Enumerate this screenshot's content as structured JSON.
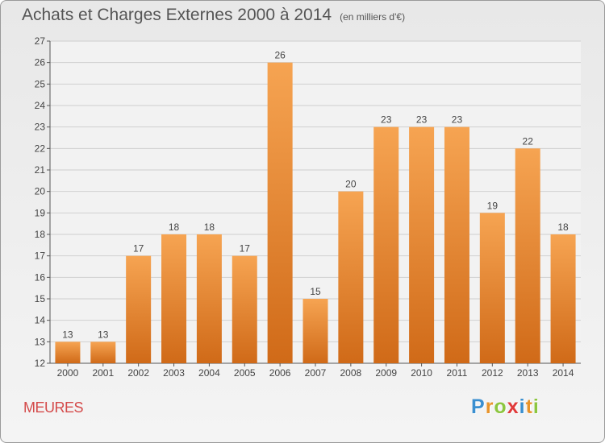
{
  "chart_data": {
    "type": "bar",
    "title": "Achats et Charges Externes 2000 à 2014",
    "unit": "(en milliers d'€)",
    "categories": [
      "2000",
      "2001",
      "2002",
      "2003",
      "2004",
      "2005",
      "2006",
      "2007",
      "2008",
      "2009",
      "2010",
      "2011",
      "2012",
      "2013",
      "2014"
    ],
    "values": [
      13,
      13,
      17,
      18,
      18,
      17,
      26,
      15,
      20,
      23,
      23,
      23,
      19,
      22,
      18
    ],
    "ylim": [
      12,
      27
    ],
    "yticks": [
      12,
      13,
      14,
      15,
      16,
      17,
      18,
      19,
      20,
      21,
      22,
      23,
      24,
      25,
      26,
      27
    ],
    "grid": true,
    "bar_color_top": "#f6a452",
    "bar_color_bottom": "#d06a18"
  },
  "footer": {
    "commune": "MEURES",
    "logo_letters": [
      {
        "ch": "P",
        "color": "#3a8fd0"
      },
      {
        "ch": "r",
        "color": "#e8932a"
      },
      {
        "ch": "o",
        "color": "#8cc63f"
      },
      {
        "ch": "x",
        "color": "#e03a3a"
      },
      {
        "ch": "i",
        "color": "#3a8fd0"
      },
      {
        "ch": "t",
        "color": "#e8932a"
      },
      {
        "ch": "i",
        "color": "#8cc63f"
      }
    ]
  }
}
